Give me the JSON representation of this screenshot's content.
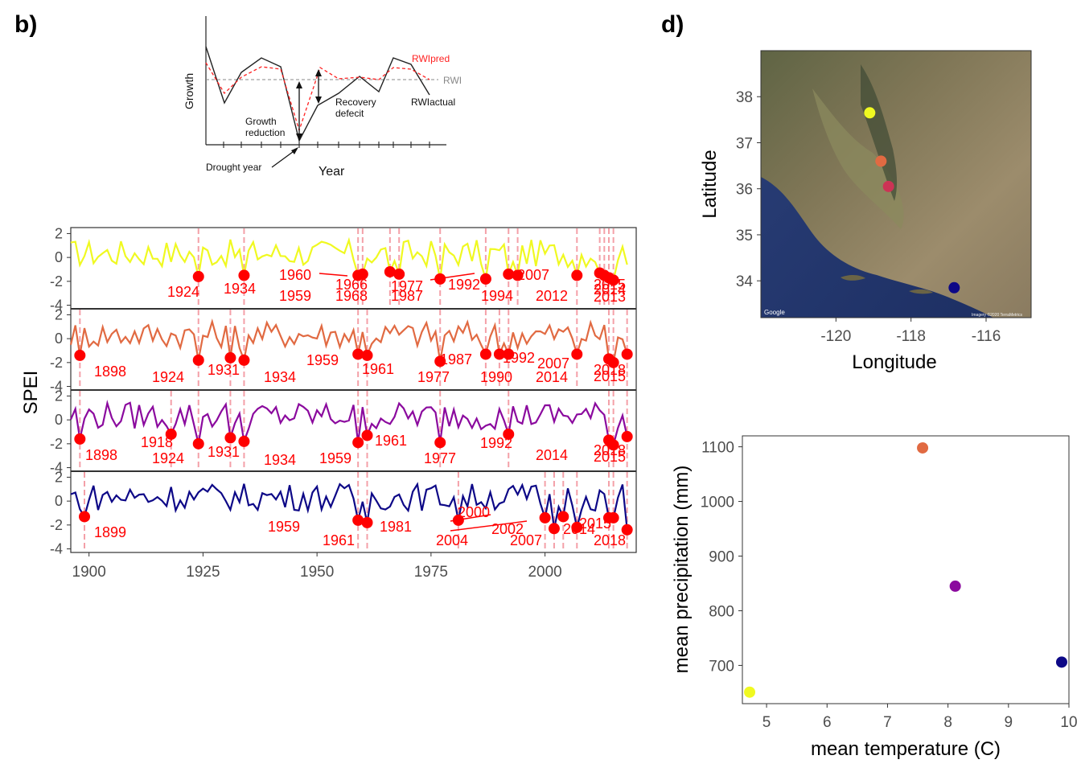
{
  "panel_labels": {
    "b": "b)",
    "d": "d)"
  },
  "colors": {
    "site1": "#f0f921",
    "site2": "#e16a42",
    "site3": "#8b0a9e",
    "site4": "#0d0887",
    "drought_point": "#ff0000",
    "drought_line": "#f4a0a8"
  },
  "schematic": {
    "ylabel": "Growth",
    "xlabel": "Year",
    "drought_year": "Drought year",
    "growth_reduction": [
      "Growth",
      "reduction"
    ],
    "recovery_deficit": [
      "Recovery",
      "defecit"
    ],
    "rwi_pred": "RWIpred",
    "rwi_mean": "RWI",
    "rwi_actual": "RWIactual"
  },
  "spei_panel": {
    "ylabel": "SPEI",
    "x_ticks": [
      "1900",
      "1925",
      "1950",
      "1975",
      "2000"
    ],
    "y_ticks": [
      "2",
      "0",
      "-2",
      "-4"
    ],
    "annotations": [
      [
        "1924",
        "1934",
        "1960",
        "1959",
        "1966",
        "1968",
        "1977",
        "1987",
        "1992",
        "1994",
        "2007",
        "2012",
        "2015",
        "2014",
        "2013"
      ],
      [
        "1898",
        "1924",
        "1931",
        "1934",
        "1959",
        "1961",
        "1977",
        "1987",
        "1990",
        "1992",
        "2007",
        "2014",
        "2018",
        "2015"
      ],
      [
        "1898",
        "1918",
        "1924",
        "1931",
        "1934",
        "1959",
        "1961",
        "1977",
        "1992",
        "2014",
        "2018",
        "2015"
      ],
      [
        "1899",
        "1959",
        "1961",
        "1981",
        "2000",
        "2002",
        "2004",
        "2007",
        "2014",
        "2015",
        "2018"
      ]
    ]
  },
  "map_panel": {
    "xlabel": "Longitude",
    "ylabel": "Latitude",
    "x_ticks": [
      "-120",
      "-118",
      "-116"
    ],
    "y_ticks": [
      "38",
      "37",
      "36",
      "35",
      "34"
    ],
    "google": "Google",
    "attribution": "Imagery ©2020 TerraMetrics"
  },
  "chart_data": [
    {
      "type": "line",
      "title": "",
      "xlabel": "",
      "ylabel": "SPEI",
      "xlim": [
        1896,
        2020
      ],
      "ylim": [
        -4.3,
        2.5
      ],
      "series": [
        {
          "color": "#f0f921",
          "drought_years": [
            1924,
            1934,
            1959,
            1960,
            1966,
            1968,
            1977,
            1987,
            1992,
            1994,
            2007,
            2012,
            2013,
            2014,
            2015
          ],
          "drought_values": [
            -1.6,
            -1.5,
            -1.5,
            -1.4,
            -1.2,
            -1.4,
            -1.8,
            -1.8,
            -1.4,
            -1.5,
            -1.5,
            -1.3,
            -1.5,
            -1.7,
            -1.9
          ]
        },
        {
          "color": "#e16a42",
          "drought_years": [
            1898,
            1924,
            1931,
            1934,
            1959,
            1961,
            1977,
            1987,
            1990,
            1992,
            2007,
            2014,
            2015,
            2018
          ],
          "drought_values": [
            -1.4,
            -1.8,
            -1.6,
            -1.8,
            -1.3,
            -1.4,
            -1.9,
            -1.3,
            -1.3,
            -1.3,
            -1.3,
            -1.7,
            -2.0,
            -1.3
          ]
        },
        {
          "color": "#8b0a9e",
          "drought_years": [
            1898,
            1918,
            1924,
            1931,
            1934,
            1959,
            1961,
            1977,
            1992,
            2014,
            2015,
            2018
          ],
          "drought_values": [
            -1.6,
            -1.2,
            -2.0,
            -1.5,
            -1.8,
            -1.9,
            -1.3,
            -1.9,
            -1.2,
            -1.7,
            -2.1,
            -1.4
          ],
          "drought_lines": [
            1898,
            1918,
            1924,
            1931,
            1934,
            1959,
            1961,
            1977,
            1992,
            2014,
            2015,
            2018
          ]
        },
        {
          "color": "#0d0887",
          "drought_years": [
            1899,
            1959,
            1961,
            1981,
            2000,
            2002,
            2004,
            2007,
            2014,
            2015,
            2018
          ],
          "drought_values": [
            -1.3,
            -1.6,
            -1.8,
            -1.6,
            -1.4,
            -2.3,
            -1.3,
            -2.2,
            -1.4,
            -1.4,
            -2.4
          ]
        }
      ]
    },
    {
      "type": "scatter",
      "title": "",
      "xlabel": "mean temperature (C)",
      "ylabel": "mean precipitation (mm)",
      "xlim": [
        4.6,
        10.0
      ],
      "ylim": [
        630,
        1120
      ],
      "x_ticks": [
        5,
        6,
        7,
        8,
        9,
        10
      ],
      "y_ticks": [
        700,
        800,
        900,
        1000,
        1100
      ],
      "points": [
        {
          "x": 4.72,
          "y": 651,
          "color": "#f0f921"
        },
        {
          "x": 7.58,
          "y": 1098,
          "color": "#e16a42"
        },
        {
          "x": 8.12,
          "y": 845,
          "color": "#8b0a9e"
        },
        {
          "x": 9.88,
          "y": 706,
          "color": "#0d0887"
        }
      ]
    },
    {
      "type": "scatter",
      "title": "",
      "xlabel": "Longitude",
      "ylabel": "Latitude",
      "xlim": [
        -122.0,
        -114.8
      ],
      "ylim": [
        33.2,
        39.0
      ],
      "points": [
        {
          "x": -119.1,
          "y": 37.65,
          "color": "#f0f921"
        },
        {
          "x": -118.8,
          "y": 36.6,
          "color": "#e16a42"
        },
        {
          "x": -118.6,
          "y": 36.05,
          "color": "#cc3355"
        },
        {
          "x": -116.85,
          "y": 33.85,
          "color": "#0d0887"
        }
      ]
    }
  ]
}
